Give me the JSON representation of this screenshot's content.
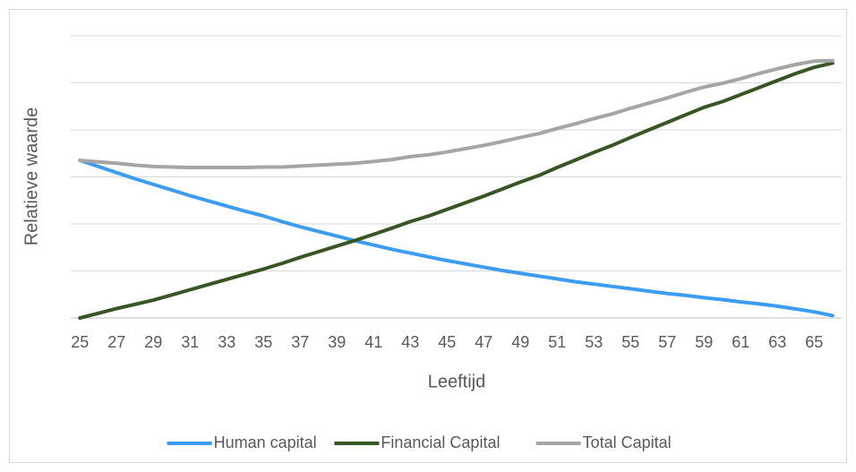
{
  "chart_data": {
    "type": "line",
    "x_label": "Leeftijd",
    "y_label": "Relatieve waarde",
    "categories": [
      "25",
      null,
      "27",
      null,
      "29",
      null,
      "31",
      null,
      "33",
      null,
      "35",
      null,
      "37",
      null,
      "39",
      null,
      "41",
      null,
      "43",
      null,
      "45",
      null,
      "47",
      null,
      "49",
      null,
      "51",
      null,
      "53",
      null,
      "55",
      null,
      "57",
      null,
      "59",
      null,
      "61",
      null,
      "63",
      null,
      "65",
      null
    ],
    "series": [
      {
        "name": "Human capital",
        "color": "#3b9cf0",
        "values": [
          3.35,
          3.22,
          3.09,
          2.96,
          2.84,
          2.72,
          2.6,
          2.49,
          2.38,
          2.27,
          2.17,
          2.05,
          1.94,
          1.84,
          1.74,
          1.64,
          1.55,
          1.46,
          1.38,
          1.3,
          1.22,
          1.15,
          1.08,
          1.01,
          0.95,
          0.89,
          0.83,
          0.77,
          0.72,
          0.67,
          0.62,
          0.57,
          0.52,
          0.48,
          0.43,
          0.39,
          0.34,
          0.3,
          0.25,
          0.19,
          0.13,
          0.05
        ]
      },
      {
        "name": "Financial Capital",
        "color": "#375623",
        "values": [
          0,
          0.1,
          0.2,
          0.29,
          0.38,
          0.49,
          0.6,
          0.71,
          0.82,
          0.93,
          1.04,
          1.16,
          1.29,
          1.41,
          1.53,
          1.65,
          1.78,
          1.91,
          2.05,
          2.17,
          2.31,
          2.45,
          2.59,
          2.74,
          2.89,
          3.03,
          3.2,
          3.36,
          3.52,
          3.67,
          3.84,
          4.0,
          4.16,
          4.32,
          4.48,
          4.6,
          4.75,
          4.9,
          5.05,
          5.2,
          5.33,
          5.42
        ]
      },
      {
        "name": "Total Capital",
        "color": "#a5a5a5",
        "values": [
          3.35,
          3.32,
          3.29,
          3.25,
          3.22,
          3.21,
          3.2,
          3.2,
          3.2,
          3.2,
          3.21,
          3.21,
          3.23,
          3.25,
          3.27,
          3.29,
          3.33,
          3.37,
          3.43,
          3.47,
          3.53,
          3.6,
          3.67,
          3.75,
          3.84,
          3.92,
          4.03,
          4.13,
          4.24,
          4.34,
          4.46,
          4.57,
          4.68,
          4.8,
          4.91,
          4.99,
          5.09,
          5.2,
          5.3,
          5.39,
          5.46,
          5.47
        ]
      }
    ],
    "ylim": [
      0,
      6
    ],
    "yticks": [
      0,
      1,
      2,
      3,
      4,
      5,
      6
    ],
    "grid": true,
    "legend": "bottom"
  }
}
